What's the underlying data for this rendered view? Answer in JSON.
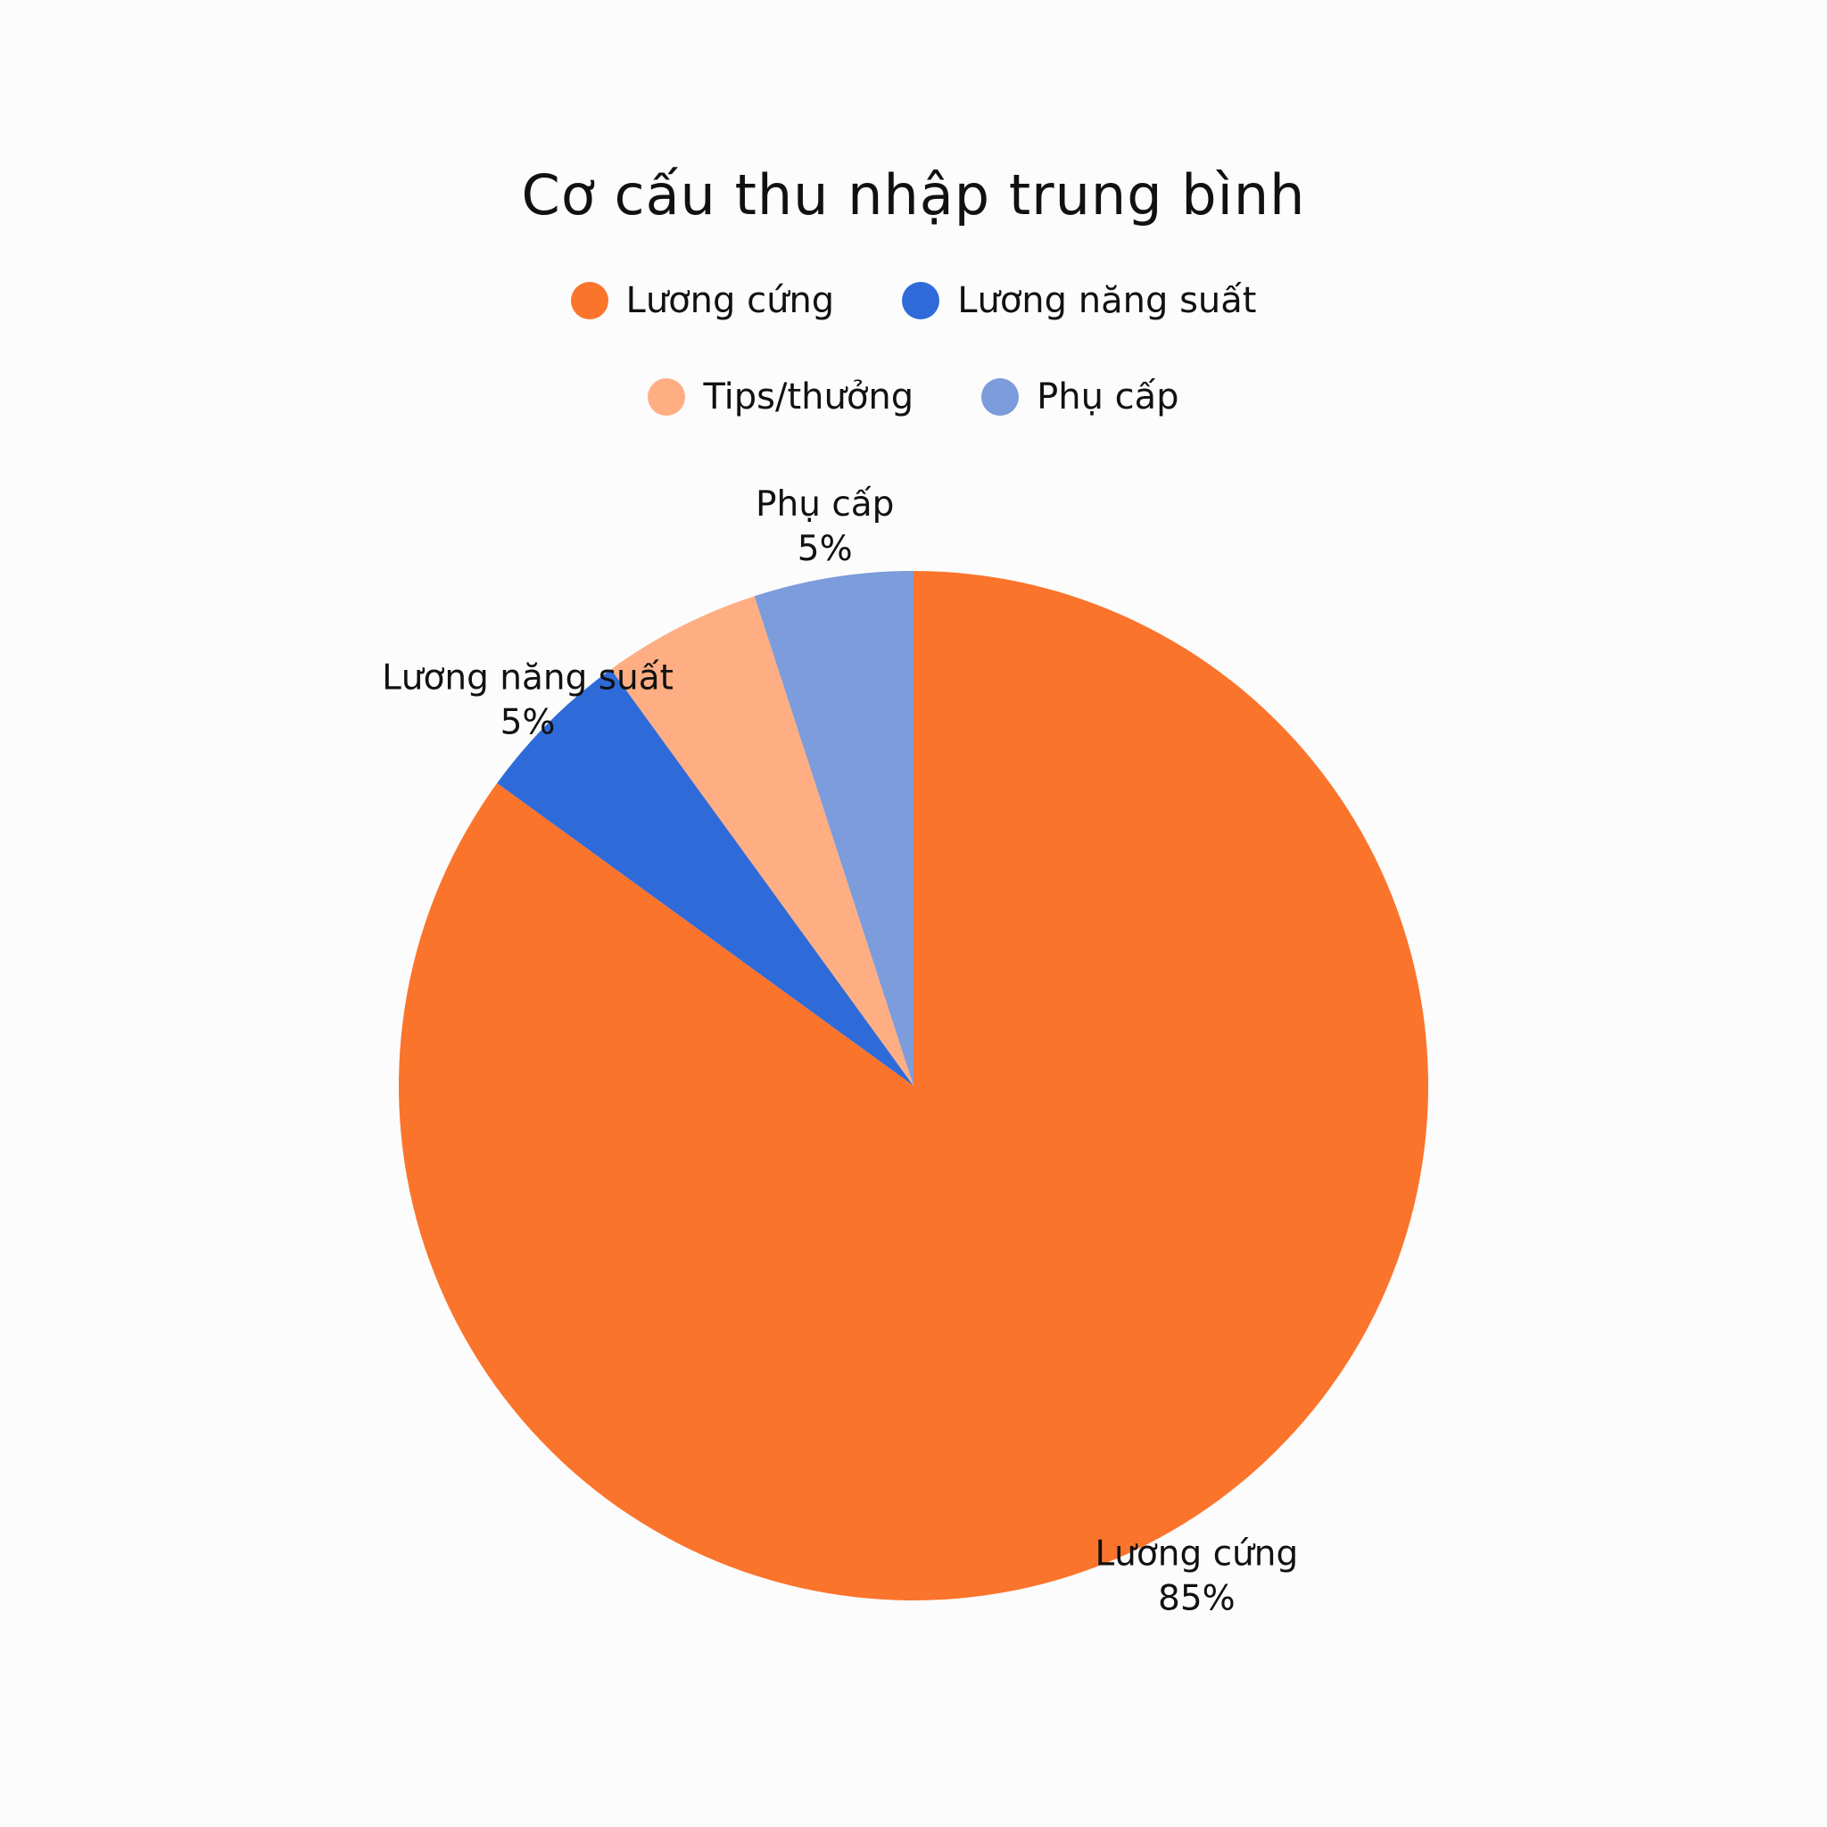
{
  "chart_data": {
    "type": "pie",
    "title": "Cơ cấu thu nhập trung bình",
    "categories": [
      "Lương cứng",
      "Lương năng suất",
      "Tips/thưởng",
      "Phụ cấp"
    ],
    "values": [
      85,
      5,
      5,
      5
    ],
    "value_labels": [
      "85%",
      "5%",
      "",
      "5%"
    ],
    "colors": [
      "#fb742c",
      "#2f6bd8",
      "#ffae84",
      "#7c9cdb"
    ],
    "legend_position": "top",
    "legend_rows": [
      [
        0,
        1
      ],
      [
        2,
        3
      ]
    ]
  }
}
